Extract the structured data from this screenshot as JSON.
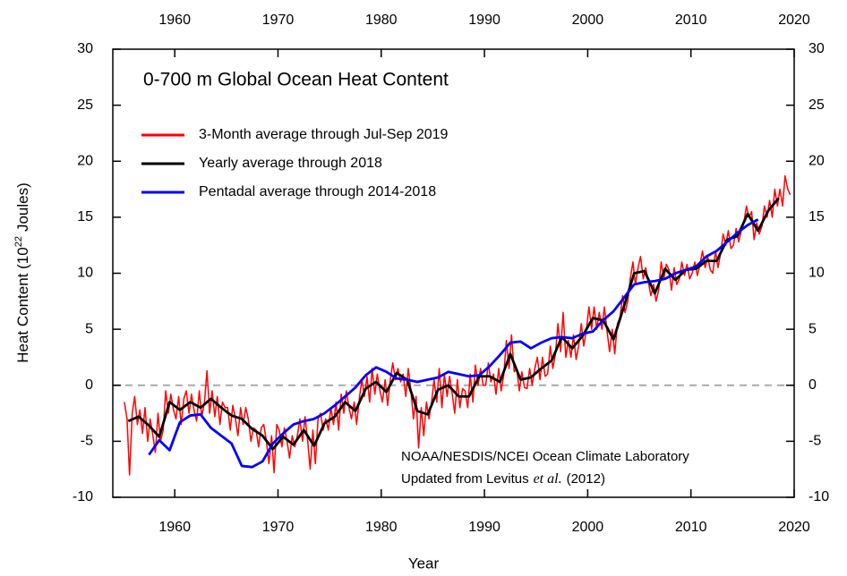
{
  "chart_data": {
    "type": "line",
    "title": "0-700 m Global Ocean Heat Content",
    "xlabel": "Year",
    "ylabel": {
      "text": "Heat Content (10",
      "superscript": "22",
      "suffix": "Joules)"
    },
    "annotation": {
      "line1": "NOAA/NESDIS/NCEI Ocean Climate Laboratory",
      "line2": [
        "Updated from Levitus",
        "et al.",
        "(2012)"
      ]
    },
    "xlim": [
      1954,
      2020
    ],
    "xticks": [
      1960,
      1970,
      1980,
      1990,
      2000,
      2010,
      2020
    ],
    "ylim": [
      -10,
      30
    ],
    "yticks": [
      -10,
      -5,
      0,
      5,
      10,
      15,
      20,
      25,
      30
    ],
    "hline": 0,
    "legend": "upper left",
    "series": [
      {
        "name": "3-Month average through Jul-Sep 2019",
        "color": "#ff0000",
        "width": 1.5,
        "x": [
          1955.12,
          1955.38,
          1955.62,
          1955.88,
          1956.12,
          1956.38,
          1956.62,
          1956.88,
          1957.12,
          1957.38,
          1957.62,
          1957.88,
          1958.12,
          1958.38,
          1958.62,
          1958.88,
          1959.12,
          1959.38,
          1959.62,
          1959.88,
          1960.12,
          1960.38,
          1960.62,
          1960.88,
          1961.12,
          1961.38,
          1961.62,
          1961.88,
          1962.12,
          1962.38,
          1962.62,
          1962.88,
          1963.12,
          1963.38,
          1963.62,
          1963.88,
          1964.12,
          1964.38,
          1964.62,
          1964.88,
          1965.12,
          1965.38,
          1965.62,
          1965.88,
          1966.12,
          1966.38,
          1966.62,
          1966.88,
          1967.12,
          1967.38,
          1967.62,
          1967.88,
          1968.12,
          1968.38,
          1968.62,
          1968.88,
          1969.12,
          1969.38,
          1969.62,
          1969.88,
          1970.12,
          1970.38,
          1970.62,
          1970.88,
          1971.12,
          1971.38,
          1971.62,
          1971.88,
          1972.12,
          1972.38,
          1972.62,
          1972.88,
          1973.12,
          1973.38,
          1973.62,
          1973.88,
          1974.12,
          1974.38,
          1974.62,
          1974.88,
          1975.12,
          1975.38,
          1975.62,
          1975.88,
          1976.12,
          1976.38,
          1976.62,
          1976.88,
          1977.12,
          1977.38,
          1977.62,
          1977.88,
          1978.12,
          1978.38,
          1978.62,
          1978.88,
          1979.12,
          1979.38,
          1979.62,
          1979.88,
          1980.12,
          1980.38,
          1980.62,
          1980.88,
          1981.12,
          1981.38,
          1981.62,
          1981.88,
          1982.12,
          1982.38,
          1982.62,
          1982.88,
          1983.12,
          1983.38,
          1983.62,
          1983.88,
          1984.12,
          1984.38,
          1984.62,
          1984.88,
          1985.12,
          1985.38,
          1985.62,
          1985.88,
          1986.12,
          1986.38,
          1986.62,
          1986.88,
          1987.12,
          1987.38,
          1987.62,
          1987.88,
          1988.12,
          1988.38,
          1988.62,
          1988.88,
          1989.12,
          1989.38,
          1989.62,
          1989.88,
          1990.12,
          1990.38,
          1990.62,
          1990.88,
          1991.12,
          1991.38,
          1991.62,
          1991.88,
          1992.12,
          1992.38,
          1992.62,
          1992.88,
          1993.12,
          1993.38,
          1993.62,
          1993.88,
          1994.12,
          1994.38,
          1994.62,
          1994.88,
          1995.12,
          1995.38,
          1995.62,
          1995.88,
          1996.12,
          1996.38,
          1996.62,
          1996.88,
          1997.12,
          1997.38,
          1997.62,
          1997.88,
          1998.12,
          1998.38,
          1998.62,
          1998.88,
          1999.12,
          1999.38,
          1999.62,
          1999.88,
          2000.12,
          2000.38,
          2000.62,
          2000.88,
          2001.12,
          2001.38,
          2001.62,
          2001.88,
          2002.12,
          2002.38,
          2002.62,
          2002.88,
          2003.12,
          2003.38,
          2003.62,
          2003.88,
          2004.12,
          2004.38,
          2004.62,
          2004.88,
          2005.12,
          2005.38,
          2005.62,
          2005.88,
          2006.12,
          2006.38,
          2006.62,
          2006.88,
          2007.12,
          2007.38,
          2007.62,
          2007.88,
          2008.12,
          2008.38,
          2008.62,
          2008.88,
          2009.12,
          2009.38,
          2009.62,
          2009.88,
          2010.12,
          2010.38,
          2010.62,
          2010.88,
          2011.12,
          2011.38,
          2011.62,
          2011.88,
          2012.12,
          2012.38,
          2012.62,
          2012.88,
          2013.12,
          2013.38,
          2013.62,
          2013.88,
          2014.12,
          2014.38,
          2014.62,
          2014.88,
          2015.12,
          2015.38,
          2015.62,
          2015.88,
          2016.12,
          2016.38,
          2016.62,
          2016.88,
          2017.12,
          2017.38,
          2017.62,
          2017.88,
          2018.12,
          2018.38,
          2018.62,
          2018.88,
          2019.12,
          2019.38,
          2019.62
        ],
        "values": [
          -1.5,
          -3.0,
          -8.0,
          -2.5,
          -1.0,
          -3.5,
          -2.2,
          -4.3,
          -2.0,
          -5.0,
          -3.0,
          -4.5,
          -6.0,
          -2.5,
          -5.0,
          -4.0,
          -0.5,
          -2.5,
          -0.8,
          -2.2,
          -3.0,
          -1.0,
          -3.5,
          -1.2,
          -0.5,
          -2.5,
          -0.8,
          -2.3,
          -3.2,
          -0.5,
          -2.8,
          -1.5,
          1.3,
          -2.5,
          -0.5,
          -2.8,
          -1.0,
          -3.5,
          -1.5,
          -2.0,
          -2.0,
          -4.0,
          -1.8,
          -3.0,
          -4.5,
          -2.0,
          -3.5,
          -2.0,
          -3.0,
          -5.0,
          -3.8,
          -4.0,
          -5.5,
          -3.8,
          -3.5,
          -5.0,
          -7.0,
          -4.5,
          -7.8,
          -3.5,
          -4.0,
          -5.5,
          -3.8,
          -5.0,
          -6.5,
          -4.5,
          -5.5,
          -4.5,
          -3.0,
          -5.0,
          -2.8,
          -5.0,
          -7.5,
          -4.0,
          -7.0,
          -3.0,
          -2.5,
          -4.0,
          -3.0,
          -4.0,
          -2.0,
          -3.5,
          -1.5,
          -4.0,
          -0.8,
          -2.5,
          -0.5,
          -2.0,
          -3.0,
          -1.5,
          -3.5,
          -1.2,
          0.5,
          -1.0,
          0.8,
          -1.5,
          1.5,
          -0.8,
          1.0,
          -0.5,
          -1.5,
          0.5,
          -1.8,
          0.5,
          2.0,
          0.5,
          1.5,
          0.3,
          1.0,
          -1.0,
          1.5,
          -0.5,
          -3.0,
          -1.0,
          -5.6,
          -2.0,
          -4.5,
          -1.5,
          -3.0,
          -1.5,
          0.5,
          -1.5,
          1.5,
          -2.0,
          1.0,
          -1.0,
          0.8,
          -0.8,
          -2.5,
          0.5,
          -2.0,
          -0.3,
          -0.5,
          -2.0,
          1.0,
          -1.5,
          1.8,
          0.0,
          1.5,
          0.0,
          0.0,
          2.0,
          0.3,
          1.0,
          -0.8,
          1.5,
          -0.5,
          1.0,
          4.0,
          1.5,
          4.5,
          1.2,
          1.5,
          -0.5,
          1.2,
          -0.2,
          -0.3,
          1.5,
          0.0,
          1.5,
          2.5,
          0.5,
          2.5,
          0.8,
          1.0,
          3.5,
          1.5,
          2.8,
          5.5,
          3.0,
          6.5,
          2.5,
          4.0,
          2.5,
          4.5,
          2.3,
          3.5,
          5.5,
          3.5,
          5.0,
          7.0,
          5.0,
          7.0,
          5.0,
          6.5,
          5.0,
          7.0,
          4.8,
          3.0,
          5.0,
          2.8,
          5.5,
          6.0,
          8.0,
          6.5,
          7.5,
          9.5,
          11.0,
          9.0,
          10.5,
          11.5,
          9.5,
          10.5,
          9.2,
          8.0,
          9.0,
          7.5,
          8.5,
          11.0,
          9.5,
          10.8,
          10.3,
          8.5,
          10.5,
          9.0,
          9.5,
          11.0,
          9.8,
          10.8,
          9.5,
          10.0,
          11.0,
          9.8,
          10.8,
          12.0,
          10.5,
          11.5,
          10.3,
          10.0,
          12.0,
          10.5,
          11.8,
          13.5,
          12.5,
          13.8,
          12.2,
          12.5,
          14.0,
          12.8,
          13.8,
          14.5,
          16.0,
          15.0,
          15.5,
          13.0,
          14.5,
          13.5,
          14.2,
          16.0,
          15.0,
          16.5,
          15.0,
          17.5,
          16.0,
          17.5,
          16.0,
          18.7,
          17.5,
          17.0
        ]
      },
      {
        "name": "Yearly average through 2018",
        "color": "#000000",
        "width": 2.8,
        "x": [
          1955.5,
          1956.5,
          1957.5,
          1958.5,
          1959.5,
          1960.5,
          1961.5,
          1962.5,
          1963.5,
          1964.5,
          1965.5,
          1966.5,
          1967.5,
          1968.5,
          1969.5,
          1970.5,
          1971.5,
          1972.5,
          1973.5,
          1974.5,
          1975.5,
          1976.5,
          1977.5,
          1978.5,
          1979.5,
          1980.5,
          1981.5,
          1982.5,
          1983.5,
          1984.5,
          1985.5,
          1986.5,
          1987.5,
          1988.5,
          1989.5,
          1990.5,
          1991.5,
          1992.5,
          1993.5,
          1994.5,
          1995.5,
          1996.5,
          1997.5,
          1998.5,
          1999.5,
          2000.5,
          2001.5,
          2002.5,
          2003.5,
          2004.5,
          2005.5,
          2006.5,
          2007.5,
          2008.5,
          2009.5,
          2010.5,
          2011.5,
          2012.5,
          2013.5,
          2014.5,
          2015.5,
          2016.5,
          2017.5,
          2018.5
        ],
        "values": [
          -3.2,
          -2.8,
          -3.6,
          -4.6,
          -1.5,
          -2.2,
          -1.5,
          -2.0,
          -1.2,
          -2.0,
          -2.7,
          -3.0,
          -3.9,
          -4.5,
          -5.7,
          -4.6,
          -5.3,
          -4.0,
          -5.4,
          -3.4,
          -2.8,
          -1.5,
          -2.3,
          -0.3,
          0.3,
          -0.6,
          1.1,
          0.5,
          -2.3,
          -2.6,
          -0.4,
          0.0,
          -1.0,
          -1.0,
          0.8,
          0.8,
          0.3,
          2.8,
          0.5,
          0.7,
          1.5,
          2.2,
          4.3,
          3.3,
          4.4,
          6.0,
          5.8,
          4.1,
          7.0,
          10.0,
          10.2,
          8.2,
          10.4,
          9.4,
          10.3,
          10.4,
          11.1,
          11.1,
          13.0,
          13.3,
          15.3,
          13.8,
          15.6,
          16.7
        ]
      },
      {
        "name": "Pentadal average through 2014-2018",
        "color": "#0000ff",
        "width": 2.8,
        "x": [
          1957.5,
          1958.5,
          1959.5,
          1960.5,
          1961.5,
          1962.5,
          1963.5,
          1964.5,
          1965.5,
          1966.5,
          1967.5,
          1968.5,
          1969.5,
          1970.5,
          1971.5,
          1972.5,
          1973.5,
          1974.5,
          1975.5,
          1976.5,
          1977.5,
          1978.5,
          1979.5,
          1980.5,
          1981.5,
          1982.5,
          1983.5,
          1984.5,
          1985.5,
          1986.5,
          1987.5,
          1988.5,
          1989.5,
          1990.5,
          1991.5,
          1992.5,
          1993.5,
          1994.5,
          1995.5,
          1996.5,
          1997.5,
          1998.5,
          1999.5,
          2000.5,
          2001.5,
          2002.5,
          2003.5,
          2004.5,
          2005.5,
          2006.5,
          2007.5,
          2008.5,
          2009.5,
          2010.5,
          2011.5,
          2012.5,
          2013.5,
          2014.5,
          2015.5,
          2016.5
        ],
        "values": [
          -6.2,
          -4.9,
          -5.8,
          -3.3,
          -2.7,
          -2.6,
          -3.8,
          -4.5,
          -5.2,
          -7.2,
          -7.3,
          -6.8,
          -5.2,
          -4.3,
          -3.5,
          -3.2,
          -3.0,
          -2.5,
          -1.8,
          -1.0,
          -0.2,
          0.9,
          1.6,
          1.2,
          0.6,
          0.5,
          0.3,
          0.5,
          0.7,
          1.2,
          1.0,
          0.8,
          0.9,
          1.7,
          2.7,
          3.8,
          3.9,
          3.3,
          3.8,
          4.2,
          4.3,
          4.2,
          4.6,
          4.8,
          5.8,
          6.6,
          7.8,
          9.0,
          9.2,
          9.3,
          9.5,
          10.0,
          10.3,
          10.6,
          11.5,
          12.0,
          12.8,
          13.6,
          14.3,
          14.8
        ]
      }
    ]
  }
}
